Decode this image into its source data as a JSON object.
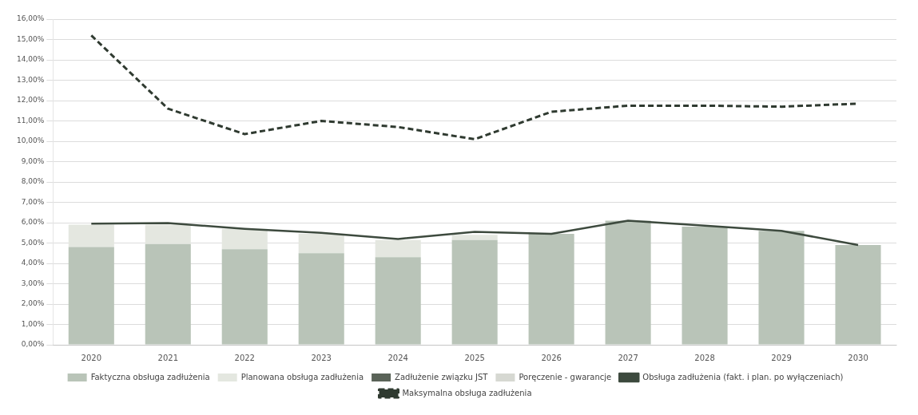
{
  "chart_data": {
    "type": "bar",
    "stacked": true,
    "categories": [
      "2020",
      "2021",
      "2022",
      "2023",
      "2024",
      "2025",
      "2026",
      "2027",
      "2028",
      "2029",
      "2030"
    ],
    "series": [
      {
        "name": "Faktyczna obsługa zadłużenia",
        "color": "#b9c4b8",
        "values": [
          4.8,
          4.95,
          4.7,
          4.5,
          4.3,
          5.15,
          5.45,
          6.1,
          5.8,
          5.6,
          4.9
        ]
      },
      {
        "name": "Planowana obsługa zadłużenia",
        "color": "#e4e7e0",
        "values": [
          1.1,
          0.95,
          1.0,
          0.95,
          0.85,
          0.25,
          0,
          0,
          0,
          0,
          0
        ]
      },
      {
        "name": "Zadłużenie związku JST",
        "color": "#5a6358",
        "values": [
          0,
          0,
          0,
          0,
          0,
          0,
          0,
          0,
          0,
          0,
          0
        ]
      },
      {
        "name": "Poręczenie - gwarancje",
        "color": "#d6d8d2",
        "values": [
          0,
          0,
          0,
          0,
          0,
          0,
          0,
          0,
          0,
          0,
          0
        ]
      },
      {
        "name": "Obsługa zadłużenia (fakt. i plan. po wyłączeniach)",
        "type": "line",
        "line_style": "solid",
        "color": "#3d4a3e",
        "values": [
          5.95,
          5.98,
          5.7,
          5.5,
          5.2,
          5.55,
          5.45,
          6.1,
          5.85,
          5.6,
          4.9
        ]
      },
      {
        "name": "Maksymalna obsługa zadłużenia",
        "type": "line",
        "line_style": "dashed",
        "color": "#2f3a30",
        "values": [
          15.2,
          11.6,
          10.35,
          11.0,
          10.7,
          10.1,
          11.45,
          11.75,
          11.75,
          11.7,
          11.85
        ]
      }
    ],
    "ylim": [
      0,
      16
    ],
    "yticks": [
      {
        "value": 0,
        "label": "0,00%"
      },
      {
        "value": 1,
        "label": "1,00%"
      },
      {
        "value": 2,
        "label": "2,00%"
      },
      {
        "value": 3,
        "label": "3,00%"
      },
      {
        "value": 4,
        "label": "4,00%"
      },
      {
        "value": 5,
        "label": "5,00%"
      },
      {
        "value": 6,
        "label": "6,00%"
      },
      {
        "value": 7,
        "label": "7,00%"
      },
      {
        "value": 8,
        "label": "8,00%"
      },
      {
        "value": 9,
        "label": "9,00%"
      },
      {
        "value": 10,
        "label": "10,00%"
      },
      {
        "value": 11,
        "label": "11,00%"
      },
      {
        "value": 12,
        "label": "12,00%"
      },
      {
        "value": 13,
        "label": "13,00%"
      },
      {
        "value": 14,
        "label": "14,00%"
      },
      {
        "value": 15,
        "label": "15,00%"
      },
      {
        "value": 16,
        "label": "16,00%"
      }
    ],
    "grid": "y",
    "legend": "bottom",
    "marker": "none"
  }
}
